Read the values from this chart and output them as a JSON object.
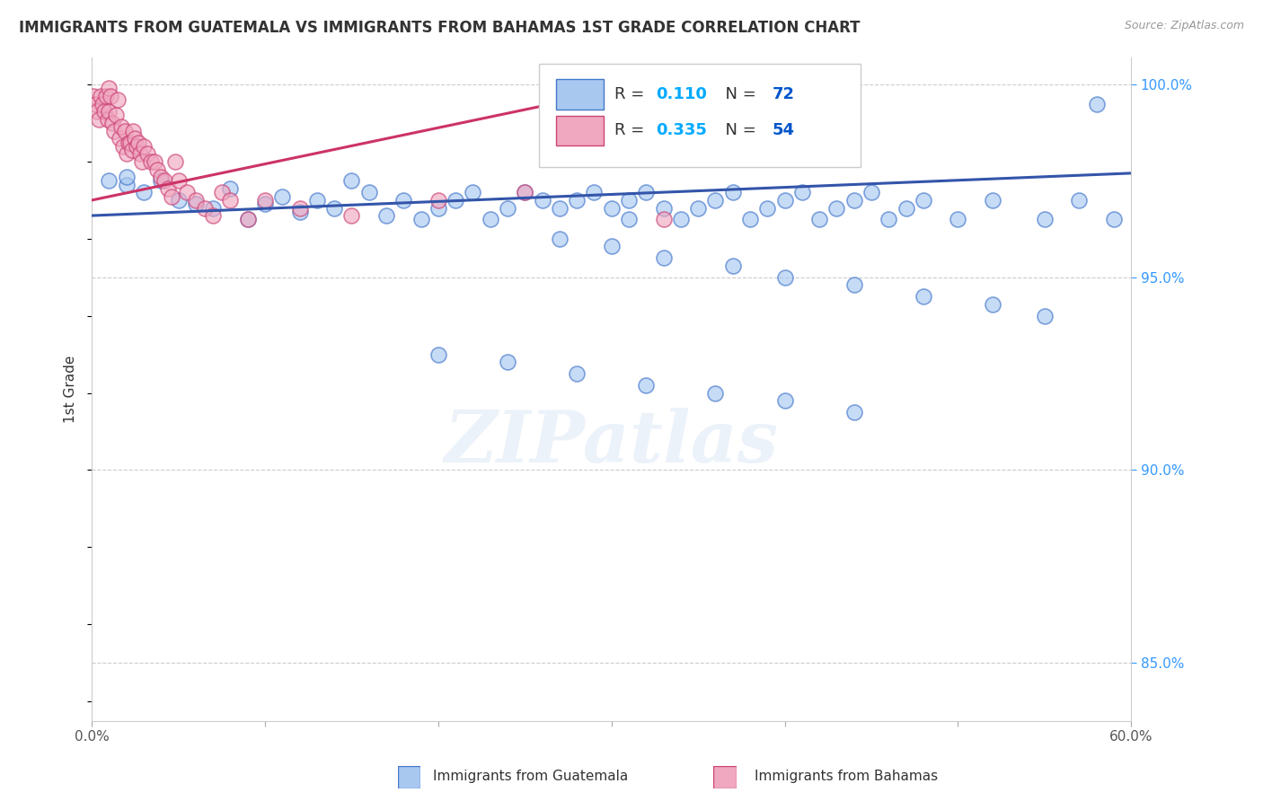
{
  "title": "IMMIGRANTS FROM GUATEMALA VS IMMIGRANTS FROM BAHAMAS 1ST GRADE CORRELATION CHART",
  "source": "Source: ZipAtlas.com",
  "ylabel": "1st Grade",
  "legend_label1": "Immigrants from Guatemala",
  "legend_label2": "Immigrants from Bahamas",
  "R1": 0.11,
  "N1": 72,
  "R2": 0.335,
  "N2": 54,
  "color1_face": "#a8c8f0",
  "color1_edge": "#4477cc",
  "color2_face": "#f0a8c0",
  "color2_edge": "#cc4477",
  "blue_line_color": "#3355aa",
  "pink_line_color": "#cc3366",
  "xlim": [
    0.0,
    0.6
  ],
  "ylim": [
    0.835,
    1.007
  ],
  "yticks_right": [
    0.85,
    0.9,
    0.95,
    1.0
  ],
  "yticklabels_right": [
    "85.0%",
    "90.0%",
    "95.0%",
    "100.0%"
  ],
  "blue_line_x": [
    0.0,
    0.6
  ],
  "blue_line_y": [
    0.966,
    0.977
  ],
  "pink_line_x": [
    0.0,
    0.33
  ],
  "pink_line_y": [
    0.97,
    1.001
  ],
  "watermark": "ZIPatlas",
  "background": "#ffffff",
  "grid_color": "#cccccc",
  "scatter1_x": [
    0.01,
    0.02,
    0.02,
    0.03,
    0.04,
    0.05,
    0.06,
    0.07,
    0.08,
    0.09,
    0.1,
    0.11,
    0.12,
    0.13,
    0.14,
    0.15,
    0.16,
    0.17,
    0.18,
    0.19,
    0.2,
    0.21,
    0.22,
    0.23,
    0.24,
    0.25,
    0.26,
    0.27,
    0.28,
    0.29,
    0.3,
    0.31,
    0.31,
    0.32,
    0.33,
    0.34,
    0.35,
    0.36,
    0.37,
    0.38,
    0.39,
    0.4,
    0.41,
    0.42,
    0.43,
    0.44,
    0.45,
    0.46,
    0.47,
    0.48,
    0.5,
    0.52,
    0.55,
    0.57,
    0.59,
    0.27,
    0.3,
    0.33,
    0.37,
    0.4,
    0.44,
    0.48,
    0.52,
    0.55,
    0.58,
    0.2,
    0.24,
    0.28,
    0.32,
    0.36,
    0.4,
    0.44
  ],
  "scatter1_y": [
    0.975,
    0.974,
    0.976,
    0.972,
    0.975,
    0.97,
    0.969,
    0.968,
    0.973,
    0.965,
    0.969,
    0.971,
    0.967,
    0.97,
    0.968,
    0.975,
    0.972,
    0.966,
    0.97,
    0.965,
    0.968,
    0.97,
    0.972,
    0.965,
    0.968,
    0.972,
    0.97,
    0.968,
    0.97,
    0.972,
    0.968,
    0.965,
    0.97,
    0.972,
    0.968,
    0.965,
    0.968,
    0.97,
    0.972,
    0.965,
    0.968,
    0.97,
    0.972,
    0.965,
    0.968,
    0.97,
    0.972,
    0.965,
    0.968,
    0.97,
    0.965,
    0.97,
    0.965,
    0.97,
    0.965,
    0.96,
    0.958,
    0.955,
    0.953,
    0.95,
    0.948,
    0.945,
    0.943,
    0.94,
    0.995,
    0.93,
    0.928,
    0.925,
    0.922,
    0.92,
    0.918,
    0.915
  ],
  "scatter2_x": [
    0.001,
    0.002,
    0.003,
    0.004,
    0.005,
    0.006,
    0.007,
    0.008,
    0.009,
    0.01,
    0.01,
    0.011,
    0.012,
    0.013,
    0.014,
    0.015,
    0.016,
    0.017,
    0.018,
    0.019,
    0.02,
    0.021,
    0.022,
    0.023,
    0.024,
    0.025,
    0.026,
    0.027,
    0.028,
    0.029,
    0.03,
    0.032,
    0.034,
    0.036,
    0.038,
    0.04,
    0.042,
    0.044,
    0.046,
    0.048,
    0.05,
    0.055,
    0.06,
    0.065,
    0.07,
    0.075,
    0.08,
    0.09,
    0.1,
    0.12,
    0.15,
    0.2,
    0.25,
    0.33
  ],
  "scatter2_y": [
    0.997,
    0.995,
    0.993,
    0.991,
    0.997,
    0.995,
    0.993,
    0.997,
    0.991,
    0.999,
    0.993,
    0.997,
    0.99,
    0.988,
    0.992,
    0.996,
    0.986,
    0.989,
    0.984,
    0.988,
    0.982,
    0.985,
    0.985,
    0.983,
    0.988,
    0.986,
    0.984,
    0.985,
    0.982,
    0.98,
    0.984,
    0.982,
    0.98,
    0.98,
    0.978,
    0.976,
    0.975,
    0.973,
    0.971,
    0.98,
    0.975,
    0.972,
    0.97,
    0.968,
    0.966,
    0.972,
    0.97,
    0.965,
    0.97,
    0.968,
    0.966,
    0.97,
    0.972,
    0.965
  ]
}
